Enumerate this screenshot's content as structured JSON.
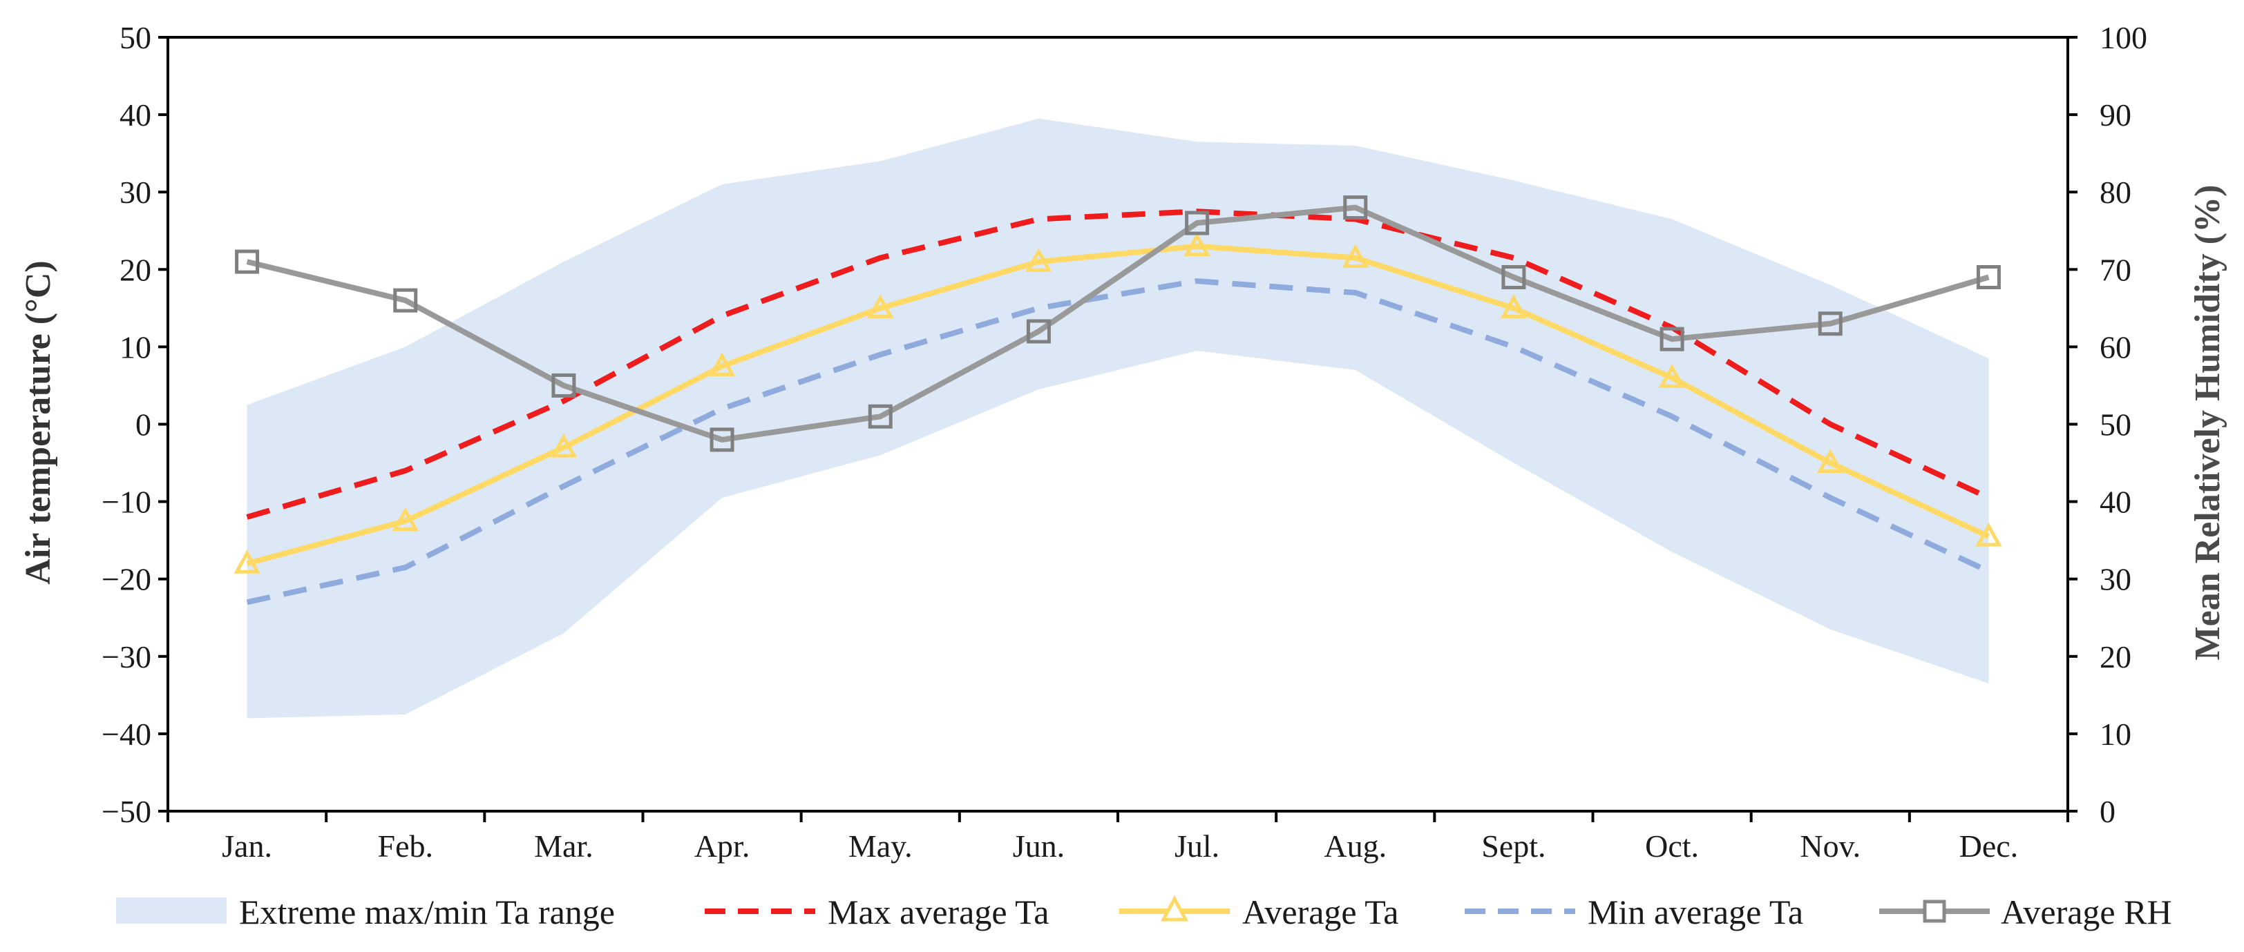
{
  "chart_data": {
    "type": "line",
    "categories": [
      "Jan.",
      "Feb.",
      "Mar.",
      "Apr.",
      "May.",
      "Jun.",
      "Jul.",
      "Aug.",
      "Sept.",
      "Oct.",
      "Nov.",
      "Dec."
    ],
    "ylabel_left": "Air temperature (°C)",
    "ylabel_right": "Mean Relatively Humidity (%)",
    "ylim_left": [
      -50,
      50
    ],
    "ylim_right": [
      0,
      100
    ],
    "yticks_left": [
      "50",
      "40",
      "30",
      "20",
      "10",
      "0",
      "−10",
      "−20",
      "−30",
      "−40",
      "−50"
    ],
    "yticks_right": [
      "100",
      "90",
      "80",
      "70",
      "60",
      "50",
      "40",
      "30",
      "20",
      "10",
      "0"
    ],
    "range": {
      "name": "Extreme max/min Ta range",
      "upper": [
        2.5,
        10,
        21,
        31,
        34,
        39.5,
        36.5,
        36,
        31.5,
        26.5,
        18,
        8.5
      ],
      "lower": [
        -38,
        -37.5,
        -27,
        -9.5,
        -4,
        4.5,
        9.5,
        7,
        -5,
        -16.5,
        -26.5,
        -33.5
      ],
      "color": "#dce8f6"
    },
    "series": [
      {
        "name": "Max average Ta",
        "axis": "left",
        "style": "dashed",
        "color": "#ee1c1c",
        "values": [
          -12,
          -6,
          3,
          14,
          21.5,
          26.5,
          27.5,
          26.5,
          21.5,
          12.5,
          0,
          -9.5
        ]
      },
      {
        "name": "Average Ta",
        "axis": "left",
        "style": "solid",
        "marker": "triangle",
        "color": "#ffd966",
        "values": [
          -18,
          -12.5,
          -3,
          7.5,
          15,
          21,
          23,
          21.5,
          15,
          6,
          -5,
          -14.5
        ]
      },
      {
        "name": "Min average Ta",
        "axis": "left",
        "style": "dashed",
        "color": "#8faadc",
        "values": [
          -23,
          -18.5,
          -8,
          2,
          9,
          15,
          18.5,
          17,
          10,
          1,
          -9.5,
          -19
        ]
      },
      {
        "name": "Average RH",
        "axis": "right",
        "style": "solid",
        "marker": "square",
        "color": "#999999",
        "values": [
          71,
          66,
          55,
          48,
          51,
          62,
          76,
          78,
          69,
          61,
          63,
          69
        ]
      }
    ],
    "legend": {
      "position": "bottom",
      "range_label": "Extreme max/min Ta range",
      "max_label": "Max average Ta",
      "avg_label": "Average Ta",
      "min_label": "Min average Ta",
      "rh_label": "Average RH"
    }
  }
}
